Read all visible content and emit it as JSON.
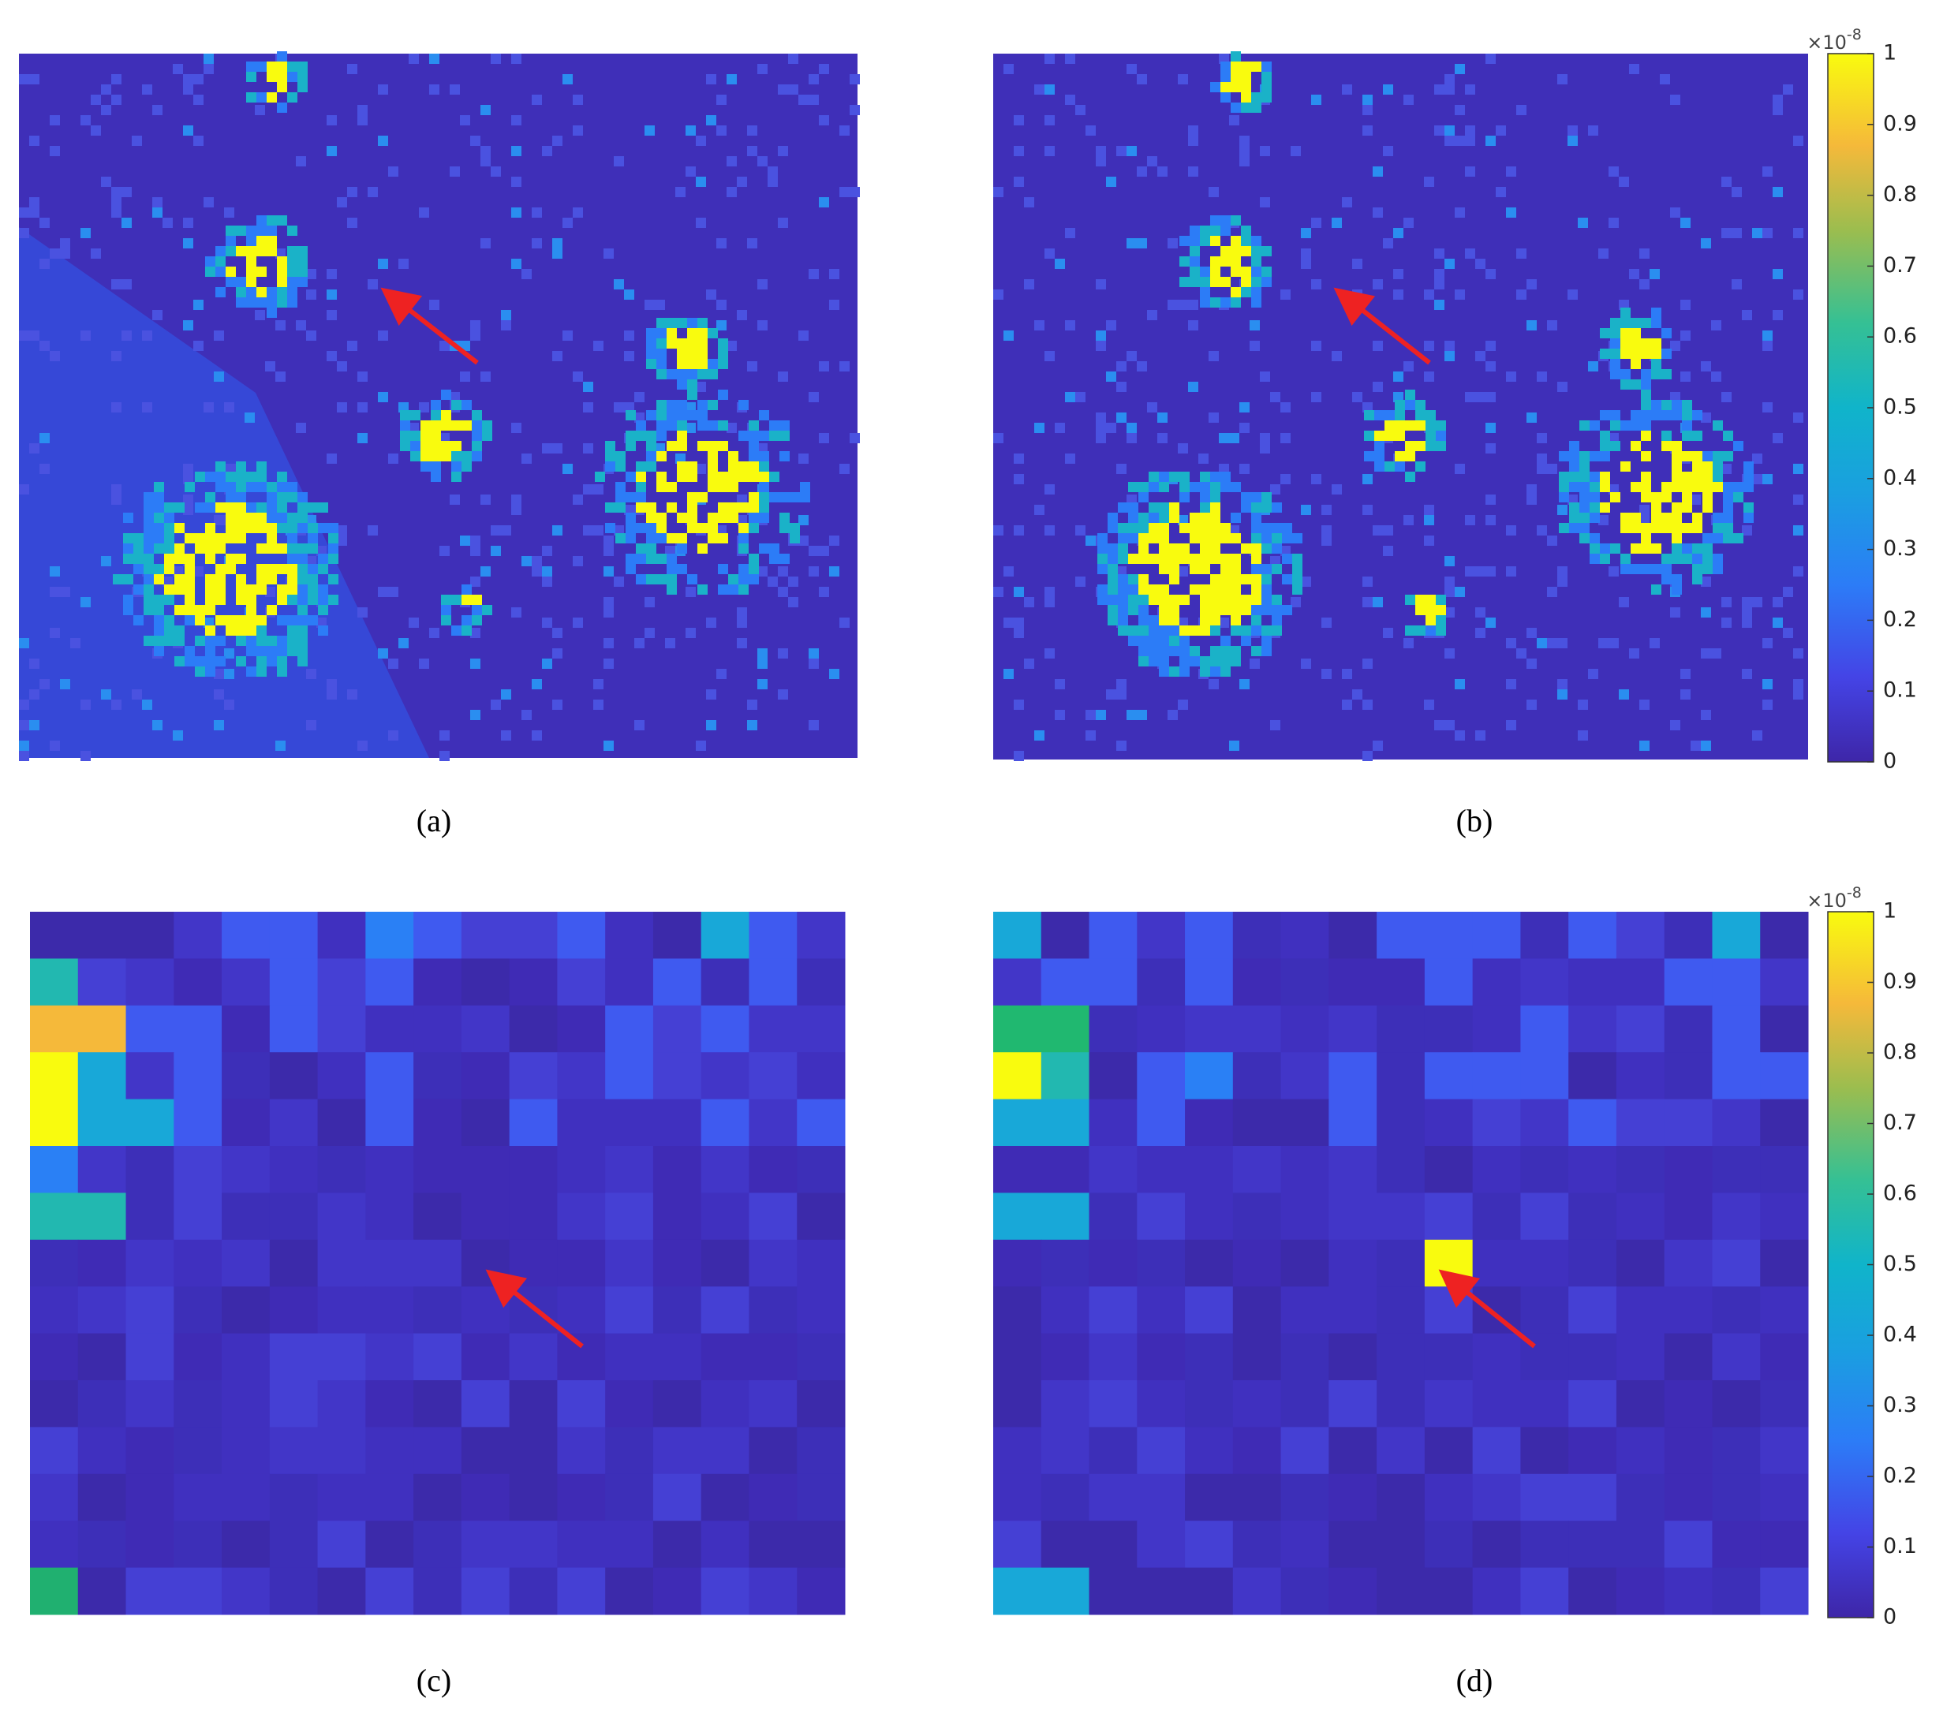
{
  "panels": [
    {
      "label": "(a)"
    },
    {
      "label": "(b)"
    },
    {
      "label": "(c)"
    },
    {
      "label": "(d)"
    }
  ],
  "colorbars": [
    {
      "ticks": [
        0,
        0.1,
        0.2,
        0.3,
        0.4,
        0.5,
        0.6,
        0.7,
        0.8,
        0.9,
        1
      ],
      "multiplier": "×10",
      "exponent": "-8"
    },
    {
      "ticks": [
        0,
        0.1,
        0.2,
        0.3,
        0.4,
        0.5,
        0.6,
        0.7,
        0.8,
        0.9,
        1
      ],
      "multiplier": "×10",
      "exponent": "-8"
    }
  ]
}
